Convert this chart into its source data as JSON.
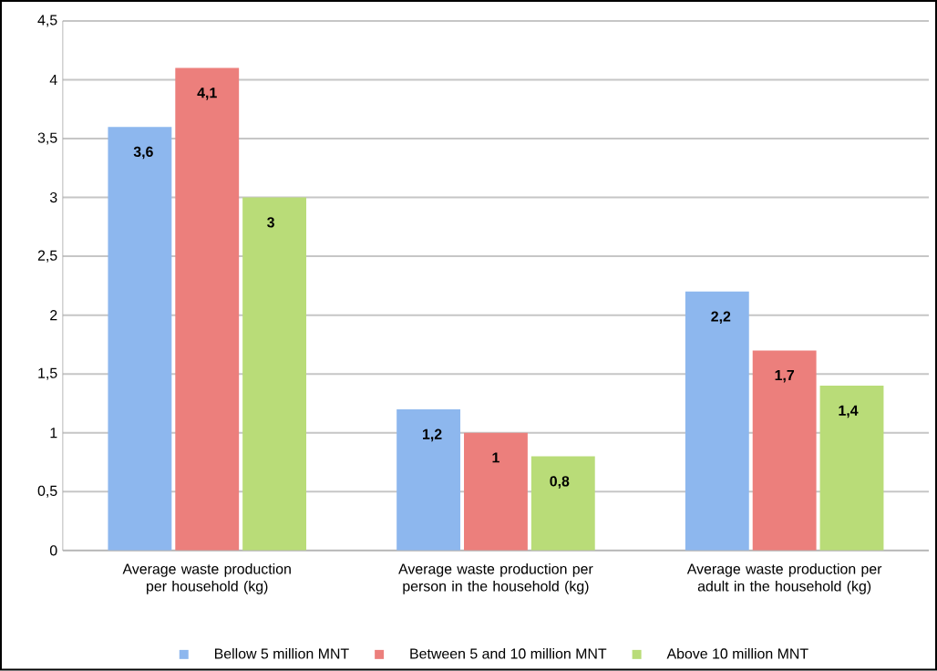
{
  "chart_data": {
    "type": "bar",
    "categories": [
      "Average waste production per household (kg)",
      "Average waste production per person in the household (kg)",
      "Average waste production per adult in the household (kg)"
    ],
    "series": [
      {
        "name": "Bellow 5 million MNT",
        "color": "#8db7ee",
        "values": [
          3.6,
          1.2,
          2.2
        ],
        "value_labels": [
          "3,6",
          "1,2",
          "2,2"
        ]
      },
      {
        "name": "Between 5 and 10 million MNT",
        "color": "#ec7f7c",
        "values": [
          4.1,
          1,
          1.7
        ],
        "value_labels": [
          "4,1",
          "1",
          "1,7"
        ]
      },
      {
        "name": "Above 10 million MNT",
        "color": "#b9dc78",
        "values": [
          3,
          0.8,
          1.4
        ],
        "value_labels": [
          "3",
          "0,8",
          "1,4"
        ]
      }
    ],
    "ylim": [
      0,
      4.5
    ],
    "yticks": [
      0,
      {
        "value": 0.5,
        "label": "0,5"
      },
      1,
      {
        "value": 1.5,
        "label": "1,5"
      },
      2,
      {
        "value": 2.5,
        "label": "2,5"
      },
      3,
      {
        "value": 3.5,
        "label": "3,5"
      },
      4,
      {
        "value": 4.5,
        "label": "4,5"
      }
    ],
    "grid": "y",
    "legend": "bottom"
  }
}
